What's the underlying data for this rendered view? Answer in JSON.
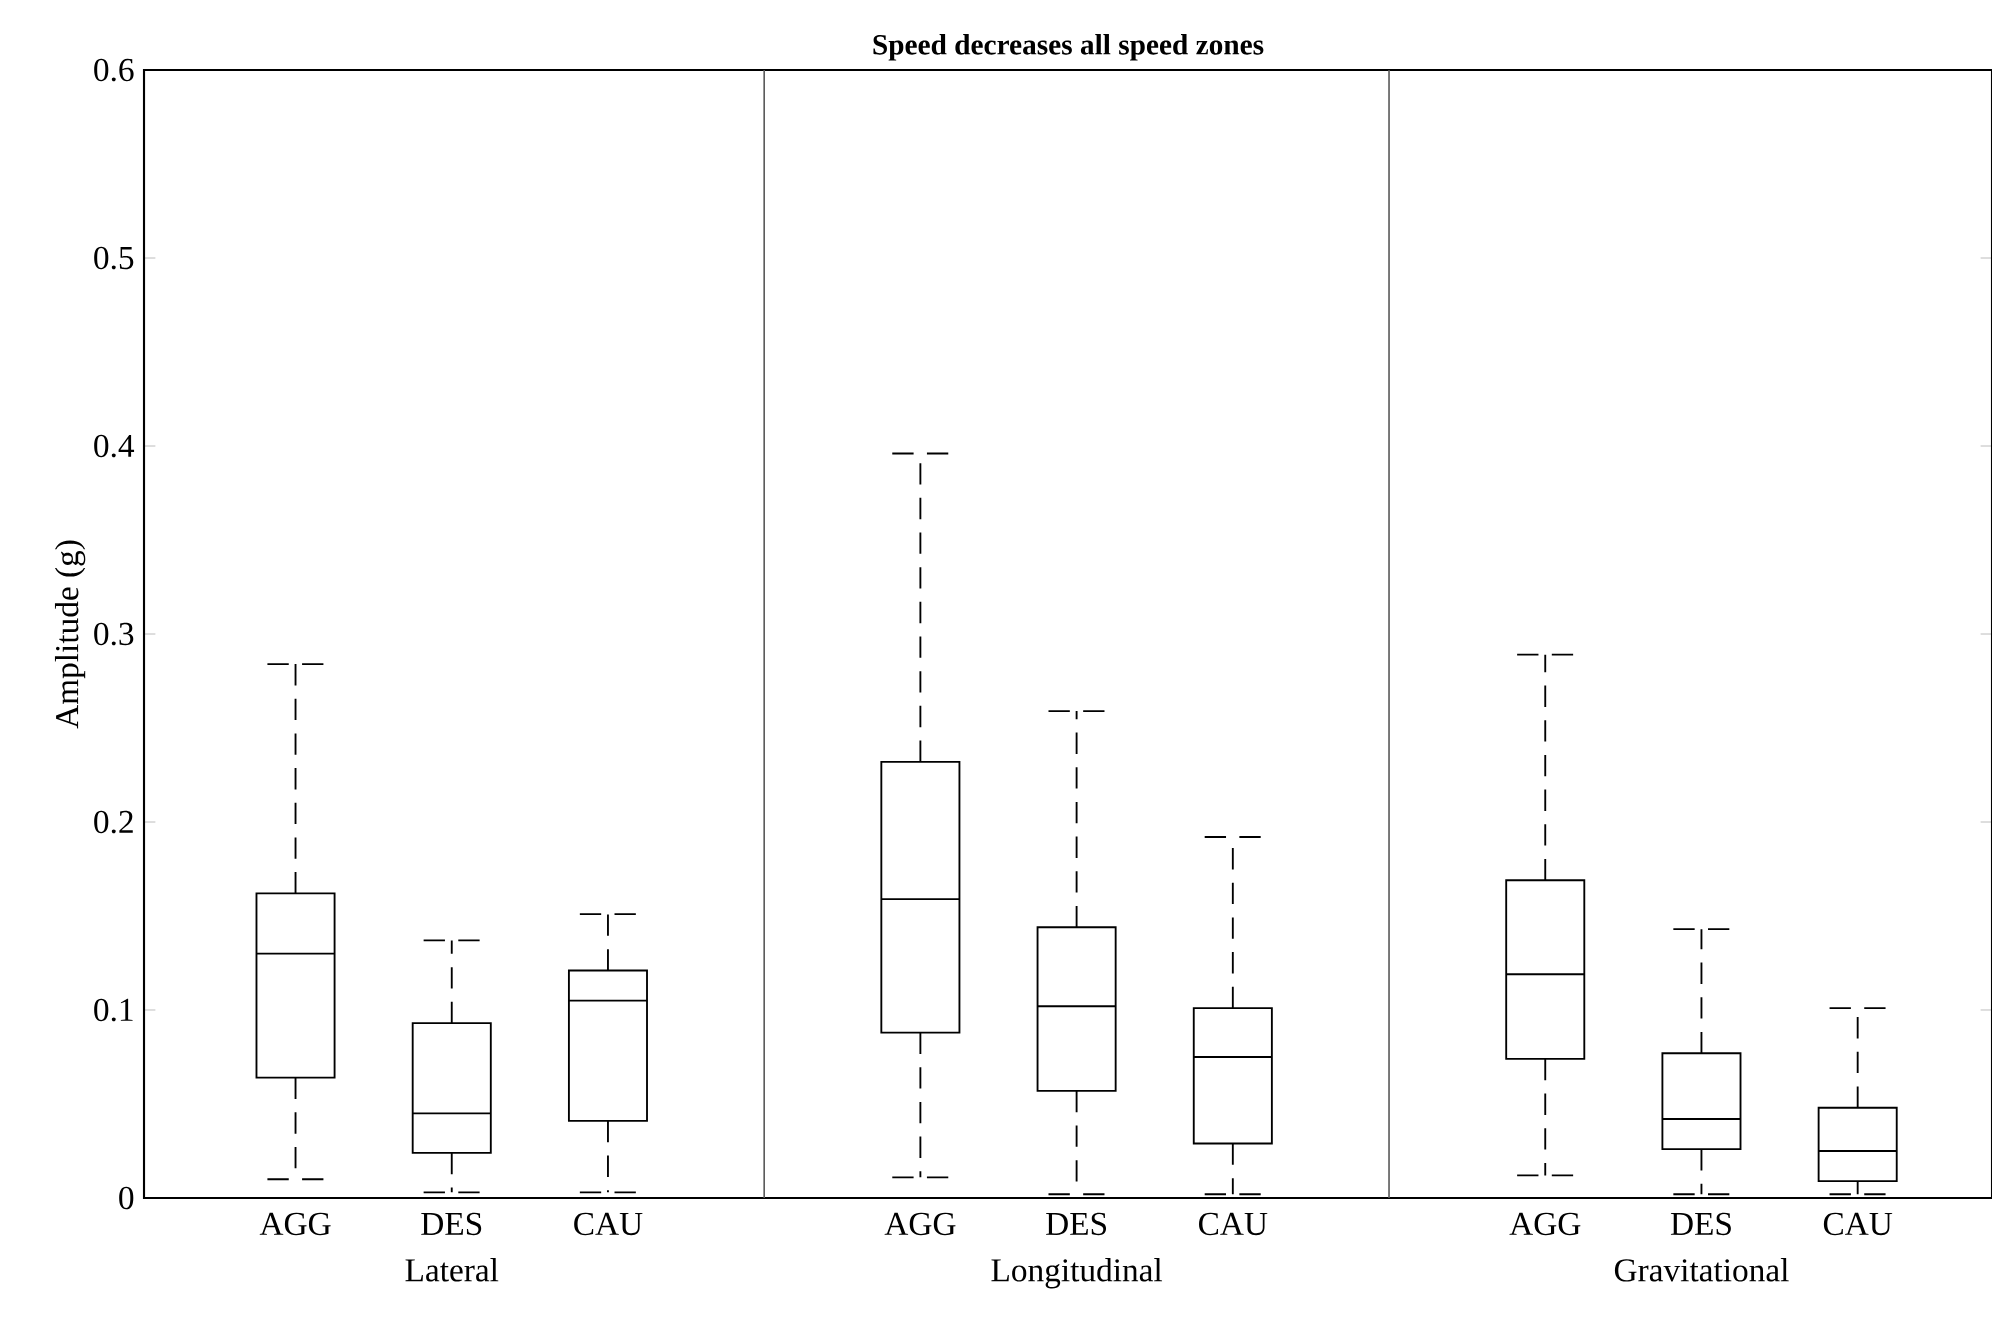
{
  "chart_data": {
    "type": "box",
    "title": "Speed decreases all speed zones",
    "ylabel": "Amplitude (g)",
    "categories": [
      "AGG",
      "DES",
      "CAU",
      "AGG",
      "DES",
      "CAU",
      "AGG",
      "DES",
      "CAU"
    ],
    "annotations": [
      "Lateral",
      "Longitudinal",
      "Gravitational"
    ],
    "color": "#000000",
    "ylim": [
      0,
      0.6
    ],
    "yticks": [
      0,
      0.1,
      0.2,
      0.3,
      0.4,
      0.5,
      0.6
    ],
    "boxes": [
      {
        "low": 0.01,
        "q1": 0.064,
        "median": 0.13,
        "q3": 0.162,
        "high": 0.284
      },
      {
        "low": 0.003,
        "q1": 0.024,
        "median": 0.045,
        "q3": 0.093,
        "high": 0.137
      },
      {
        "low": 0.003,
        "q1": 0.041,
        "median": 0.105,
        "q3": 0.121,
        "high": 0.151
      },
      {
        "low": 0.011,
        "q1": 0.088,
        "median": 0.159,
        "q3": 0.232,
        "high": 0.396
      },
      {
        "low": 0.002,
        "q1": 0.057,
        "median": 0.102,
        "q3": 0.144,
        "high": 0.259
      },
      {
        "low": 0.002,
        "q1": 0.029,
        "median": 0.075,
        "q3": 0.101,
        "high": 0.192
      },
      {
        "low": 0.012,
        "q1": 0.074,
        "median": 0.119,
        "q3": 0.169,
        "high": 0.289
      },
      {
        "low": 0.002,
        "q1": 0.026,
        "median": 0.042,
        "q3": 0.077,
        "high": 0.143
      },
      {
        "low": 0.002,
        "q1": 0.009,
        "median": 0.025,
        "q3": 0.048,
        "high": 0.101
      }
    ]
  }
}
